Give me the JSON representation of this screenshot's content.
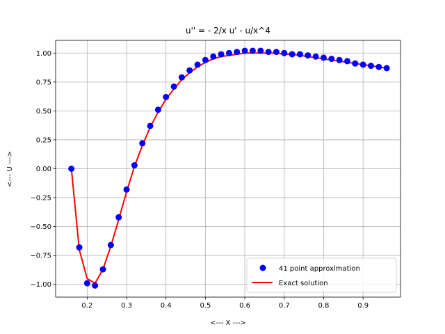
{
  "chart_data": {
    "type": "line",
    "title": "u'' = - 2/x u' - u/x^4",
    "xlabel": "<--- X --->",
    "ylabel": "<--- U --->",
    "xlim": [
      0.12,
      0.995
    ],
    "ylim": [
      -1.11,
      1.11
    ],
    "xticks": [
      0.2,
      0.3,
      0.4,
      0.5,
      0.6,
      0.7,
      0.8,
      0.9
    ],
    "xtick_labels": [
      "0.2",
      "0.3",
      "0.4",
      "0.5",
      "0.6",
      "0.7",
      "0.8",
      "0.9"
    ],
    "yticks": [
      -1.0,
      -0.75,
      -0.5,
      -0.25,
      0.0,
      0.25,
      0.5,
      0.75,
      1.0
    ],
    "ytick_labels": [
      "−1.00",
      "−0.75",
      "−0.50",
      "−0.25",
      "0.00",
      "0.25",
      "0.50",
      "0.75",
      "1.00"
    ],
    "grid": true,
    "legend_position": "lower-right",
    "series": [
      {
        "name": "41 point approximation",
        "style": "markers",
        "color": "#0000ff",
        "x": [
          0.16,
          0.18,
          0.2,
          0.22,
          0.24,
          0.26,
          0.28,
          0.3,
          0.32,
          0.34,
          0.36,
          0.38,
          0.4,
          0.42,
          0.44,
          0.46,
          0.48,
          0.5,
          0.52,
          0.54,
          0.56,
          0.58,
          0.6,
          0.62,
          0.64,
          0.66,
          0.68,
          0.7,
          0.72,
          0.74,
          0.76,
          0.78,
          0.8,
          0.82,
          0.84,
          0.86,
          0.88,
          0.9,
          0.92,
          0.94,
          0.96
        ],
        "y": [
          0.0,
          -0.68,
          -0.99,
          -1.01,
          -0.87,
          -0.66,
          -0.42,
          -0.18,
          0.03,
          0.22,
          0.37,
          0.51,
          0.62,
          0.71,
          0.79,
          0.85,
          0.9,
          0.94,
          0.97,
          0.99,
          1.0,
          1.01,
          1.02,
          1.02,
          1.02,
          1.01,
          1.01,
          1.0,
          0.99,
          0.99,
          0.98,
          0.97,
          0.96,
          0.95,
          0.94,
          0.93,
          0.91,
          0.9,
          0.89,
          0.88,
          0.87
        ]
      },
      {
        "name": "Exact solution",
        "style": "line",
        "color": "#ff0000",
        "x": [
          0.16,
          0.18,
          0.2,
          0.22,
          0.24,
          0.26,
          0.28,
          0.3,
          0.32,
          0.34,
          0.36,
          0.38,
          0.4,
          0.42,
          0.44,
          0.46,
          0.48,
          0.5,
          0.52,
          0.54,
          0.56,
          0.58,
          0.6,
          0.62,
          0.64,
          0.66,
          0.68,
          0.7,
          0.72,
          0.74,
          0.76,
          0.78,
          0.8,
          0.82,
          0.84,
          0.86,
          0.88,
          0.9,
          0.92,
          0.94,
          0.96
        ],
        "y": [
          0.0,
          -0.7,
          -0.95,
          -0.99,
          -0.87,
          -0.67,
          -0.44,
          -0.2,
          0.02,
          0.2,
          0.36,
          0.49,
          0.6,
          0.69,
          0.77,
          0.83,
          0.88,
          0.92,
          0.95,
          0.97,
          0.98,
          0.99,
          1.0,
          1.0,
          1.0,
          1.0,
          1.0,
          0.99,
          0.99,
          0.98,
          0.97,
          0.96,
          0.95,
          0.94,
          0.93,
          0.92,
          0.91,
          0.9,
          0.89,
          0.88,
          0.87
        ]
      }
    ]
  }
}
